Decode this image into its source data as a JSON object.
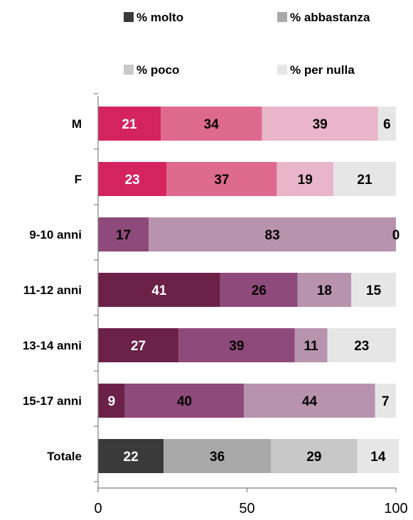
{
  "chart_data": {
    "type": "bar",
    "orientation": "horizontal",
    "stacked": true,
    "xlim": [
      0,
      100
    ],
    "xticks": [
      0,
      50,
      100
    ],
    "grid": false,
    "legend_position": "top",
    "legend": [
      {
        "name": "% molto",
        "color": "#3a3a3a"
      },
      {
        "name": "% abbastanza",
        "color": "#a9a9a9"
      },
      {
        "name": "% poco",
        "color": "#c8c8c8"
      },
      {
        "name": "% per nulla",
        "color": "#e6e6e6"
      }
    ],
    "rows": [
      {
        "label": "M",
        "values": [
          21,
          34,
          39,
          6
        ],
        "colors": [
          "#d4245f",
          "#df6a8f",
          "#e8b6c8",
          "#e6e6e6"
        ],
        "label_colors": [
          "#ffffff",
          "#000000",
          "#000000",
          "#000000"
        ]
      },
      {
        "label": "F",
        "values": [
          23,
          37,
          19,
          21
        ],
        "colors": [
          "#d4245f",
          "#df6a8f",
          "#e8b6c8",
          "#e6e6e6"
        ],
        "label_colors": [
          "#ffffff",
          "#000000",
          "#000000",
          "#000000"
        ]
      },
      {
        "label": "9-10 anni",
        "values": [
          0,
          17,
          83,
          0
        ],
        "colors": [
          "#6b2148",
          "#8e4a7a",
          "#b893ad",
          "#e6e6e6"
        ],
        "label_colors": [
          "#ffffff",
          "#000000",
          "#000000",
          "#000000"
        ]
      },
      {
        "label": "11-12 anni",
        "values": [
          41,
          26,
          18,
          15
        ],
        "colors": [
          "#6b2148",
          "#8e4a7a",
          "#b893ad",
          "#e6e6e6"
        ],
        "label_colors": [
          "#ffffff",
          "#000000",
          "#000000",
          "#000000"
        ]
      },
      {
        "label": "13-14 anni",
        "values": [
          27,
          39,
          11,
          23
        ],
        "colors": [
          "#6b2148",
          "#8e4a7a",
          "#b893ad",
          "#e6e6e6"
        ],
        "label_colors": [
          "#ffffff",
          "#000000",
          "#000000",
          "#000000"
        ]
      },
      {
        "label": "15-17 anni",
        "values": [
          9,
          40,
          44,
          7
        ],
        "colors": [
          "#6b2148",
          "#8e4a7a",
          "#b893ad",
          "#e6e6e6"
        ],
        "label_colors": [
          "#ffffff",
          "#000000",
          "#000000",
          "#000000"
        ]
      },
      {
        "label": "Totale",
        "values": [
          22,
          36,
          29,
          14
        ],
        "colors": [
          "#3a3a3a",
          "#a9a9a9",
          "#c8c8c8",
          "#e6e6e6"
        ],
        "label_colors": [
          "#ffffff",
          "#000000",
          "#000000",
          "#000000"
        ]
      }
    ]
  }
}
